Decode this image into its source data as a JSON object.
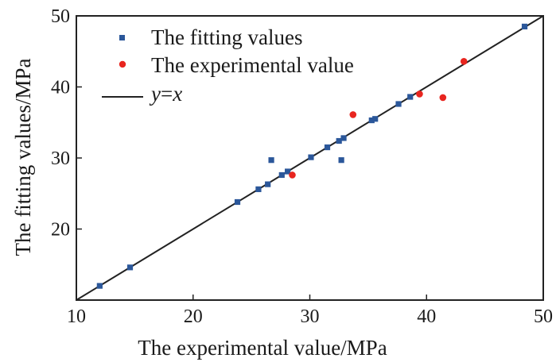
{
  "chart_data": {
    "type": "scatter",
    "title": "",
    "xlabel": "The experimental value/MPa",
    "ylabel": "The fitting values/MPa",
    "xlim": [
      10,
      50
    ],
    "ylim": [
      10,
      50
    ],
    "xticks": [
      10,
      20,
      30,
      40,
      50
    ],
    "yticks": [
      20,
      30,
      40,
      50
    ],
    "grid": false,
    "legend_position": "top-left",
    "series": [
      {
        "name": "The fitting values",
        "marker": "square",
        "color": "#2b579a",
        "points": [
          [
            12.0,
            12.0
          ],
          [
            14.6,
            14.6
          ],
          [
            23.8,
            23.8
          ],
          [
            25.6,
            25.6
          ],
          [
            26.4,
            26.3
          ],
          [
            26.7,
            29.7
          ],
          [
            27.6,
            27.6
          ],
          [
            28.1,
            28.1
          ],
          [
            30.1,
            30.1
          ],
          [
            31.5,
            31.5
          ],
          [
            32.5,
            32.4
          ],
          [
            32.7,
            29.7
          ],
          [
            32.9,
            32.8
          ],
          [
            35.3,
            35.3
          ],
          [
            35.6,
            35.5
          ],
          [
            37.6,
            37.6
          ],
          [
            38.6,
            38.6
          ],
          [
            48.4,
            48.5
          ]
        ]
      },
      {
        "name": "The experimental value",
        "marker": "circle",
        "color": "#e8251f",
        "points": [
          [
            28.5,
            27.6
          ],
          [
            33.7,
            36.1
          ],
          [
            39.4,
            39.0
          ],
          [
            41.4,
            38.5
          ],
          [
            43.2,
            43.6
          ]
        ]
      }
    ],
    "reference_line": {
      "name": "y=x",
      "legend_text_y": "y",
      "legend_text_eq": "=",
      "legend_text_x": "x",
      "from": [
        10,
        10
      ],
      "to": [
        50,
        50
      ],
      "color": "#222222"
    }
  }
}
